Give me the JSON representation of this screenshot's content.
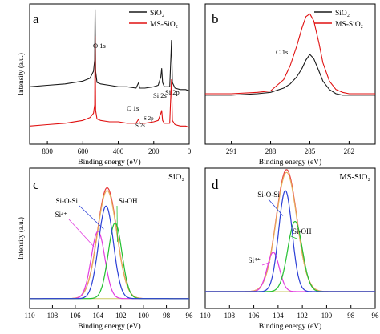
{
  "chart_data": [
    {
      "type": "line",
      "panel_letter": "a",
      "xlabel": "Binding energy (eV)",
      "ylabel": "Intensity (a.u.)",
      "xlim": [
        900,
        0
      ],
      "ylim": [
        0,
        100
      ],
      "xticks": [
        800,
        600,
        400,
        200,
        0
      ],
      "legend_placement": "top-right",
      "series": [
        {
          "name": "SiO₂",
          "color": "#1a1a1a",
          "x": [
            900,
            800,
            700,
            600,
            560,
            540,
            533,
            531,
            528,
            520,
            500,
            450,
            400,
            350,
            300,
            285,
            280,
            250,
            200,
            175,
            160,
            155,
            150,
            140,
            110,
            102,
            100,
            95,
            80,
            50,
            20,
            0
          ],
          "y": [
            41,
            42,
            43,
            45,
            47,
            52,
            60,
            96,
            52,
            44,
            43,
            42,
            41,
            41,
            40,
            44,
            40,
            40,
            41,
            42,
            48,
            54,
            44,
            41,
            41,
            66,
            74,
            44,
            40,
            39,
            39,
            38
          ]
        },
        {
          "name": "MS-SiO₂",
          "color": "#e01010",
          "x": [
            900,
            800,
            700,
            600,
            560,
            540,
            533,
            531,
            528,
            520,
            500,
            450,
            400,
            350,
            300,
            285,
            280,
            250,
            200,
            175,
            160,
            155,
            150,
            140,
            110,
            102,
            100,
            95,
            80,
            50,
            20,
            0
          ],
          "y": [
            13,
            14,
            15,
            17,
            19,
            22,
            28,
            77,
            24,
            18,
            17,
            16,
            16,
            15,
            15,
            18,
            15,
            15,
            16,
            17,
            22,
            24,
            17,
            15,
            15,
            40,
            46,
            17,
            14,
            13,
            13,
            12
          ]
        }
      ],
      "annotations": [
        "O 1s",
        "C 1s",
        "S 2s",
        "S 2p",
        "Si 2s",
        "Si 2p"
      ]
    },
    {
      "type": "line",
      "panel_letter": "b",
      "xlabel": "Binding energy (eV)",
      "ylabel": "",
      "xlim": [
        293,
        280
      ],
      "ylim": [
        0,
        100
      ],
      "xticks": [
        291,
        288,
        285,
        282
      ],
      "legend_placement": "top-right",
      "series": [
        {
          "name": "SiO₂",
          "color": "#1a1a1a",
          "x": [
            293,
            291,
            289,
            288,
            287,
            286.5,
            286,
            285.6,
            285.3,
            285,
            284.7,
            284.3,
            284,
            283.5,
            283,
            282.5,
            282,
            281,
            280
          ],
          "y": [
            35,
            35,
            36,
            37,
            40,
            43,
            48,
            54,
            60,
            64,
            61,
            52,
            45,
            39,
            36,
            35,
            35,
            35,
            35
          ]
        },
        {
          "name": "MS-SiO₂",
          "color": "#e01010",
          "x": [
            293,
            291,
            289,
            288,
            287,
            286.5,
            286,
            285.6,
            285.3,
            285,
            284.7,
            284.3,
            284,
            283.5,
            283,
            282.5,
            282,
            281,
            280
          ],
          "y": [
            36,
            36,
            37,
            38,
            46,
            56,
            70,
            83,
            91,
            93,
            88,
            72,
            58,
            45,
            39,
            37,
            36,
            36,
            36
          ]
        }
      ],
      "annotations": [
        "C 1s"
      ]
    },
    {
      "type": "line",
      "panel_letter": "c",
      "title": "SiO₂",
      "xlabel": "Binding energy (eV)",
      "ylabel": "Intensity (a.u.)",
      "xlim": [
        110,
        96
      ],
      "ylim": [
        0,
        100
      ],
      "xticks": [
        110,
        108,
        106,
        104,
        102,
        100,
        98,
        96
      ],
      "series": [
        {
          "label_text": "Si-O-Si",
          "color": "#2b3fd6",
          "center": 103.3,
          "height": 66,
          "width": 0.65
        },
        {
          "label_text": "Si-OH",
          "color": "#22c030",
          "center": 102.5,
          "height": 54,
          "width": 0.6
        },
        {
          "label_text": "Si⁴⁺",
          "color": "#e23ce0",
          "center": 104.0,
          "height": 48,
          "width": 0.6
        },
        {
          "label_text": "",
          "color": "#e6b060",
          "center": 103.2,
          "height": 77,
          "width": 0.85
        },
        {
          "label_text": "",
          "color": "#e83a3a",
          "center": 103.2,
          "height": 79,
          "width": 0.85
        }
      ],
      "baseline": 7
    },
    {
      "type": "line",
      "panel_letter": "d",
      "title": "MS-SiO₂",
      "xlabel": "Binding energy (eV)",
      "ylabel": "",
      "xlim": [
        110,
        96
      ],
      "ylim": [
        0,
        100
      ],
      "xticks": [
        110,
        108,
        106,
        104,
        102,
        100,
        98,
        96
      ],
      "series": [
        {
          "label_text": "Si-O-Si",
          "color": "#2b3fd6",
          "center": 103.4,
          "height": 72,
          "width": 0.55
        },
        {
          "label_text": "Si-OH",
          "color": "#22c030",
          "center": 102.6,
          "height": 50,
          "width": 0.6
        },
        {
          "label_text": "Si⁴⁺",
          "color": "#e23ce0",
          "center": 104.4,
          "height": 28,
          "width": 0.5
        },
        {
          "label_text": "",
          "color": "#e6b060",
          "center": 103.3,
          "height": 85,
          "width": 0.85
        },
        {
          "label_text": "",
          "color": "#e83a3a",
          "center": 103.3,
          "height": 87,
          "width": 0.85
        }
      ],
      "baseline": 12
    }
  ]
}
